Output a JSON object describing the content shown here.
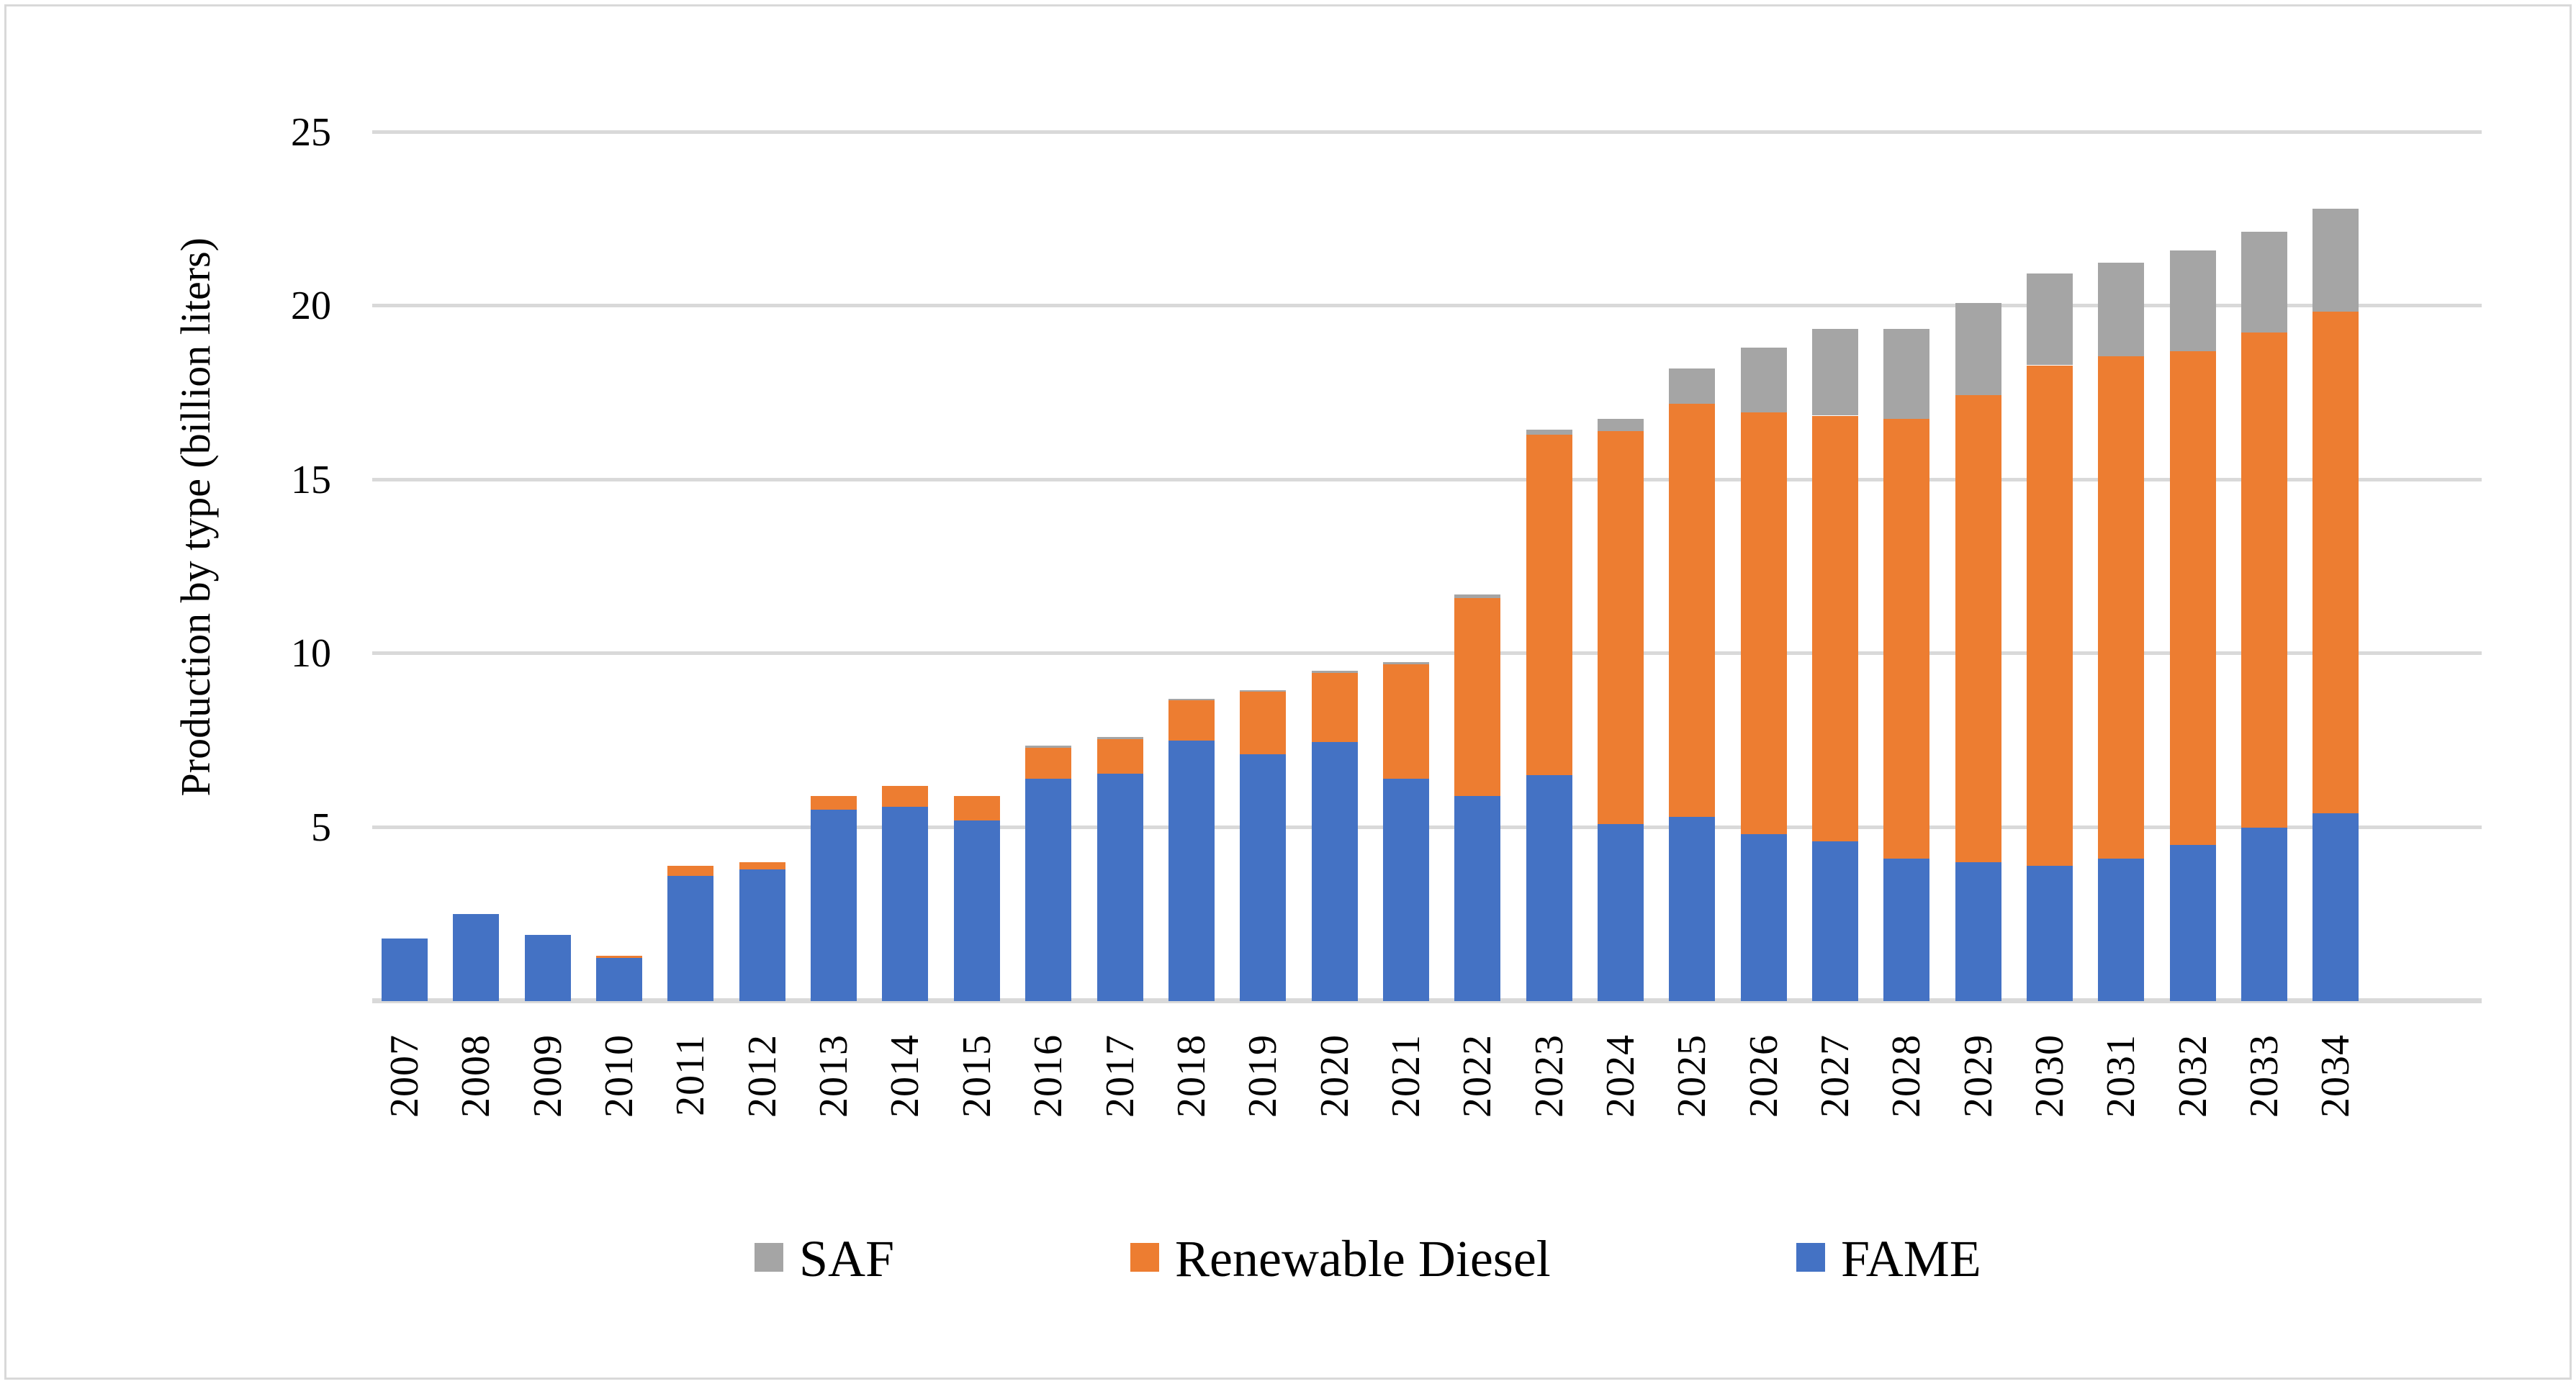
{
  "figure": {
    "background": "#ffffff",
    "border_color": "#d9d9d9",
    "gridline_color": "#d9d9d9"
  },
  "y_axis": {
    "title": "Production by type (billion liters)",
    "tick_labels": [
      "5",
      "10",
      "15",
      "20",
      "25"
    ],
    "min": 0,
    "max": 25
  },
  "legend": {
    "items": [
      {
        "label": "SAF",
        "color": "#a5a5a5"
      },
      {
        "label": "Renewable Diesel",
        "color": "#ed7d31"
      },
      {
        "label": "FAME",
        "color": "#4472c4"
      }
    ]
  },
  "chart_data": {
    "type": "bar",
    "stacked": true,
    "title": "",
    "xlabel": "",
    "ylabel": "Production by type (billion liters)",
    "ylim": [
      0,
      25
    ],
    "grid": true,
    "legend_position": "bottom",
    "categories": [
      "2007",
      "2008",
      "2009",
      "2010",
      "2011",
      "2012",
      "2013",
      "2014",
      "2015",
      "2016",
      "2017",
      "2018",
      "2019",
      "2020",
      "2021",
      "2022",
      "2023",
      "2024",
      "2025",
      "2026",
      "2027",
      "2028",
      "2029",
      "2030",
      "2031",
      "2032",
      "2033",
      "2034"
    ],
    "series": [
      {
        "name": "FAME",
        "color": "#4472c4",
        "values": [
          1.8,
          2.5,
          1.9,
          1.25,
          3.6,
          3.8,
          5.5,
          5.6,
          5.2,
          6.4,
          6.55,
          7.5,
          7.1,
          7.45,
          6.4,
          5.9,
          6.5,
          5.1,
          5.3,
          4.8,
          4.6,
          4.1,
          4.0,
          3.9,
          4.1,
          4.5,
          5.0,
          5.4
        ]
      },
      {
        "name": "Renewable Diesel",
        "color": "#ed7d31",
        "values": [
          0,
          0,
          0,
          0.05,
          0.3,
          0.2,
          0.4,
          0.6,
          0.7,
          0.9,
          1.0,
          1.15,
          1.8,
          2.0,
          3.3,
          5.7,
          9.8,
          11.3,
          11.9,
          12.15,
          12.25,
          12.65,
          13.45,
          14.4,
          14.45,
          14.2,
          14.25,
          14.45
        ]
      },
      {
        "name": "SAF",
        "color": "#a5a5a5",
        "values": [
          0,
          0,
          0,
          0,
          0,
          0,
          0,
          0,
          0,
          0.05,
          0.05,
          0.05,
          0.05,
          0.05,
          0.05,
          0.1,
          0.15,
          0.35,
          1.0,
          1.85,
          2.5,
          2.6,
          2.65,
          2.65,
          2.7,
          2.9,
          2.9,
          2.95
        ]
      }
    ]
  }
}
